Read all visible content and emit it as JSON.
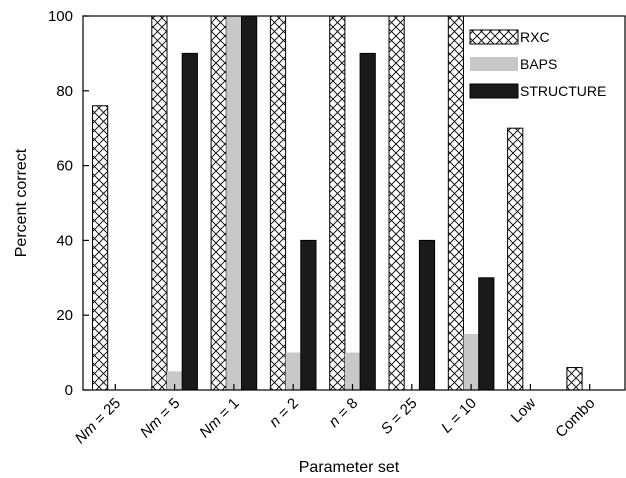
{
  "chart_data": {
    "type": "bar",
    "title": "",
    "xlabel": "Parameter set",
    "ylabel": "Percent correct",
    "ylim": [
      0,
      100
    ],
    "yticks": [
      0,
      20,
      40,
      60,
      80,
      100
    ],
    "categories": [
      {
        "prefix": "Nm",
        "suffix": " = 25"
      },
      {
        "prefix": "Nm",
        "suffix": " = 5"
      },
      {
        "prefix": "Nm",
        "suffix": " = 1"
      },
      {
        "prefix": "n",
        "suffix": " = 2"
      },
      {
        "prefix": "n",
        "suffix": " = 8"
      },
      {
        "prefix": "S",
        "suffix": " = 25"
      },
      {
        "prefix": "L",
        "suffix": " = 10"
      },
      {
        "prefix": "",
        "suffix": "Low"
      },
      {
        "prefix": "",
        "suffix": "Combo"
      }
    ],
    "series": [
      {
        "name": "RXC",
        "values": [
          76,
          100,
          100,
          100,
          100,
          100,
          100,
          70,
          6
        ]
      },
      {
        "name": "BAPS",
        "values": [
          0,
          5,
          100,
          10,
          10,
          0,
          15,
          0,
          0
        ]
      },
      {
        "name": "STRUCTURE",
        "values": [
          0,
          90,
          100,
          40,
          90,
          40,
          30,
          0,
          0
        ]
      }
    ],
    "legend_position": "top-right",
    "grid": false
  }
}
